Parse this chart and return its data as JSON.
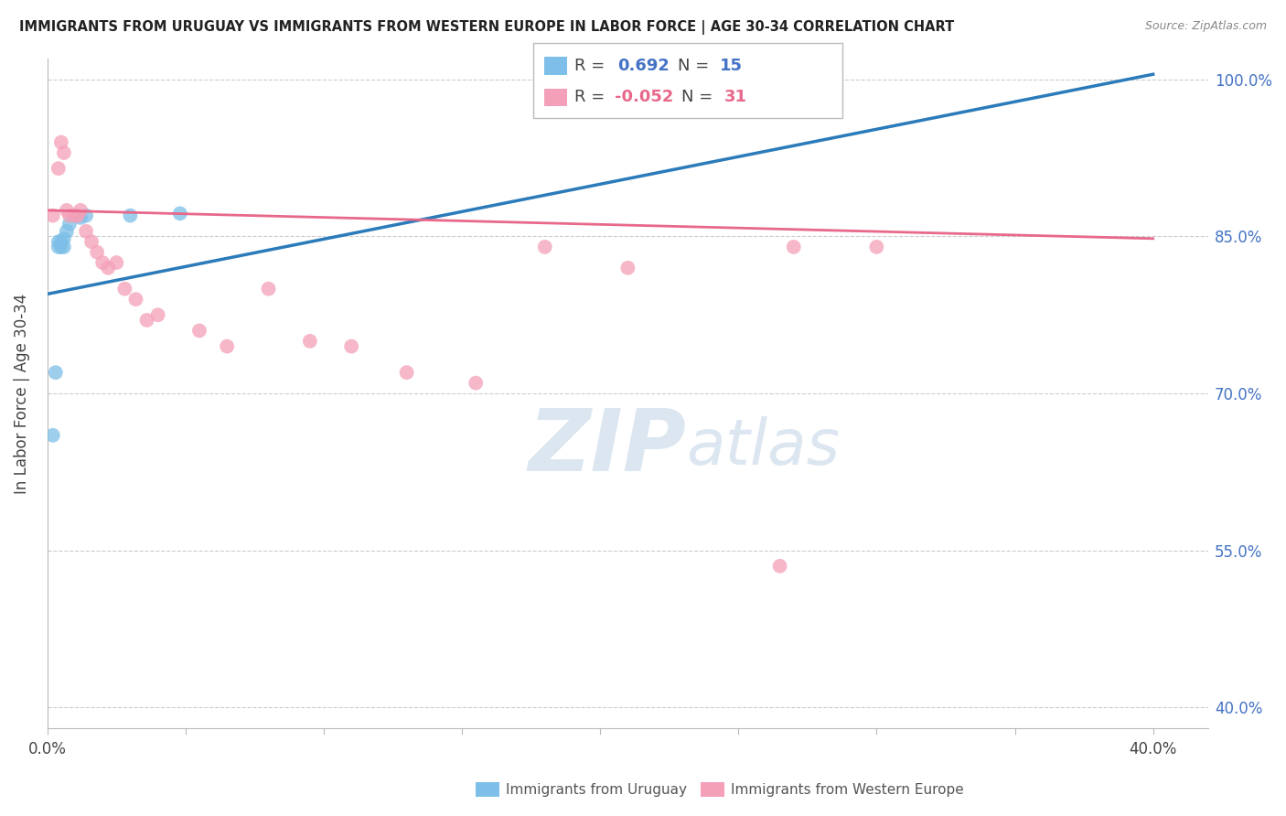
{
  "title": "IMMIGRANTS FROM URUGUAY VS IMMIGRANTS FROM WESTERN EUROPE IN LABOR FORCE | AGE 30-34 CORRELATION CHART",
  "source": "Source: ZipAtlas.com",
  "ylabel": "In Labor Force | Age 30-34",
  "xlim": [
    0.0,
    0.42
  ],
  "ylim": [
    0.38,
    1.02
  ],
  "xtick_positions": [
    0.0,
    0.05,
    0.1,
    0.15,
    0.2,
    0.25,
    0.3,
    0.35,
    0.4
  ],
  "xticklabels": [
    "0.0%",
    "",
    "",
    "",
    "",
    "",
    "",
    "",
    "40.0%"
  ],
  "ytick_positions": [
    0.4,
    0.55,
    0.7,
    0.85,
    1.0
  ],
  "ytick_labels": [
    "40.0%",
    "55.0%",
    "70.0%",
    "85.0%",
    "100.0%"
  ],
  "uruguay_color": "#7dbfe8",
  "western_europe_color": "#f4a0b8",
  "uruguay_R": 0.692,
  "uruguay_N": 15,
  "western_europe_R": -0.052,
  "western_europe_N": 31,
  "blue_line_color": "#2b7bba",
  "pink_line_color": "#e8688a",
  "watermark_color": "#dce6f0",
  "uruguay_x": [
    0.002,
    0.003,
    0.004,
    0.004,
    0.005,
    0.005,
    0.006,
    0.006,
    0.007,
    0.008,
    0.01,
    0.012,
    0.014,
    0.03,
    0.048
  ],
  "uruguay_y": [
    0.66,
    0.72,
    0.84,
    0.845,
    0.84,
    0.845,
    0.84,
    0.848,
    0.855,
    0.862,
    0.87,
    0.868,
    0.87,
    0.87,
    0.872
  ],
  "western_europe_x": [
    0.002,
    0.004,
    0.005,
    0.006,
    0.007,
    0.008,
    0.01,
    0.011,
    0.012,
    0.014,
    0.016,
    0.018,
    0.02,
    0.022,
    0.025,
    0.028,
    0.032,
    0.036,
    0.04,
    0.055,
    0.065,
    0.08,
    0.095,
    0.11,
    0.13,
    0.155,
    0.18,
    0.21,
    0.265,
    0.27,
    0.3
  ],
  "western_europe_y": [
    0.87,
    0.915,
    0.94,
    0.93,
    0.875,
    0.87,
    0.87,
    0.87,
    0.875,
    0.855,
    0.845,
    0.835,
    0.825,
    0.82,
    0.825,
    0.8,
    0.79,
    0.77,
    0.775,
    0.76,
    0.745,
    0.8,
    0.75,
    0.745,
    0.72,
    0.71,
    0.84,
    0.82,
    0.535,
    0.84,
    0.84
  ]
}
